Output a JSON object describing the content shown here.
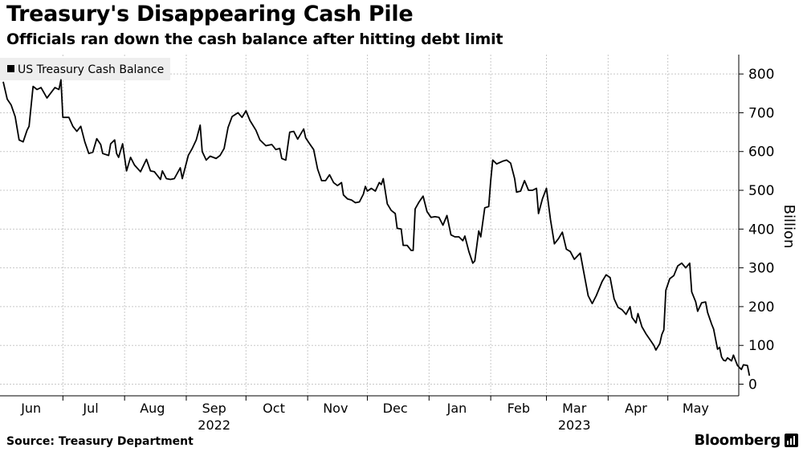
{
  "header": {
    "title": "Treasury's Disappearing Cash Pile",
    "subtitle": "Officials ran down the cash balance after hitting debt limit"
  },
  "footer": {
    "source": "Source: Treasury Department",
    "brand": "Bloomberg",
    "brand_icon": "bloomberg-terminal-icon"
  },
  "colors": {
    "line": "#000000",
    "grid": "#c8c8c8",
    "legend_bg": "#eeeeee",
    "axis": "#000000"
  },
  "chart_data": {
    "type": "line",
    "title": "Treasury's Disappearing Cash Pile",
    "subtitle": "Officials ran down the cash balance after hitting debt limit",
    "ylabel": "Billion",
    "ylim": [
      -30,
      850
    ],
    "yticks": [
      0,
      100,
      200,
      300,
      400,
      500,
      600,
      700,
      800
    ],
    "y_axis_position": "right",
    "grid": true,
    "legend_position": "top-left",
    "x_axis": {
      "start": "2022-06-01",
      "end": "2023-05-31",
      "months": [
        {
          "label": "Jun",
          "date": "2022-06-15"
        },
        {
          "label": "Jul",
          "date": "2022-07-15"
        },
        {
          "label": "Aug",
          "date": "2022-08-15"
        },
        {
          "label": "Sep",
          "date": "2022-09-15"
        },
        {
          "label": "Oct",
          "date": "2022-10-15"
        },
        {
          "label": "Nov",
          "date": "2022-11-15"
        },
        {
          "label": "Dec",
          "date": "2022-12-15"
        },
        {
          "label": "Jan",
          "date": "2023-01-15"
        },
        {
          "label": "Feb",
          "date": "2023-02-15"
        },
        {
          "label": "Mar",
          "date": "2023-03-15"
        },
        {
          "label": "Apr",
          "date": "2023-04-15"
        },
        {
          "label": "May",
          "date": "2023-05-15"
        }
      ],
      "boundaries": [
        "2022-07-01",
        "2022-08-01",
        "2022-09-01",
        "2022-10-01",
        "2022-11-01",
        "2022-12-01",
        "2023-01-01",
        "2023-02-01",
        "2023-03-01",
        "2023-04-01",
        "2023-05-01"
      ],
      "years": [
        {
          "label": "2022",
          "date": "2022-09-15"
        },
        {
          "label": "2023",
          "date": "2023-03-15"
        }
      ]
    },
    "series": [
      {
        "name": "US Treasury Cash Balance",
        "points": [
          [
            "2022-06-01",
            780
          ],
          [
            "2022-06-03",
            735
          ],
          [
            "2022-06-05",
            720
          ],
          [
            "2022-06-07",
            690
          ],
          [
            "2022-06-09",
            630
          ],
          [
            "2022-06-11",
            625
          ],
          [
            "2022-06-13",
            655
          ],
          [
            "2022-06-14",
            665
          ],
          [
            "2022-06-16",
            768
          ],
          [
            "2022-06-18",
            760
          ],
          [
            "2022-06-20",
            765
          ],
          [
            "2022-06-23",
            738
          ],
          [
            "2022-06-27",
            765
          ],
          [
            "2022-06-29",
            760
          ],
          [
            "2022-06-30",
            785
          ],
          [
            "2022-07-01",
            688
          ],
          [
            "2022-07-04",
            688
          ],
          [
            "2022-07-06",
            665
          ],
          [
            "2022-07-08",
            652
          ],
          [
            "2022-07-10",
            665
          ],
          [
            "2022-07-12",
            625
          ],
          [
            "2022-07-14",
            595
          ],
          [
            "2022-07-16",
            598
          ],
          [
            "2022-07-18",
            633
          ],
          [
            "2022-07-20",
            618
          ],
          [
            "2022-07-21",
            595
          ],
          [
            "2022-07-24",
            590
          ],
          [
            "2022-07-25",
            620
          ],
          [
            "2022-07-27",
            630
          ],
          [
            "2022-07-28",
            595
          ],
          [
            "2022-07-29",
            585
          ],
          [
            "2022-07-31",
            620
          ],
          [
            "2022-08-02",
            550
          ],
          [
            "2022-08-04",
            585
          ],
          [
            "2022-08-06",
            565
          ],
          [
            "2022-08-09",
            548
          ],
          [
            "2022-08-12",
            580
          ],
          [
            "2022-08-14",
            550
          ],
          [
            "2022-08-16",
            548
          ],
          [
            "2022-08-19",
            528
          ],
          [
            "2022-08-20",
            550
          ],
          [
            "2022-08-22",
            530
          ],
          [
            "2022-08-24",
            528
          ],
          [
            "2022-08-26",
            530
          ],
          [
            "2022-08-29",
            558
          ],
          [
            "2022-08-30",
            530
          ],
          [
            "2022-09-02",
            590
          ],
          [
            "2022-09-04",
            608
          ],
          [
            "2022-09-06",
            630
          ],
          [
            "2022-09-08",
            668
          ],
          [
            "2022-09-09",
            600
          ],
          [
            "2022-09-11",
            578
          ],
          [
            "2022-09-13",
            588
          ],
          [
            "2022-09-16",
            582
          ],
          [
            "2022-09-18",
            590
          ],
          [
            "2022-09-20",
            608
          ],
          [
            "2022-09-22",
            662
          ],
          [
            "2022-09-24",
            690
          ],
          [
            "2022-09-27",
            700
          ],
          [
            "2022-09-29",
            688
          ],
          [
            "2022-10-01",
            705
          ],
          [
            "2022-10-03",
            680
          ],
          [
            "2022-10-06",
            655
          ],
          [
            "2022-10-08",
            630
          ],
          [
            "2022-10-11",
            615
          ],
          [
            "2022-10-14",
            618
          ],
          [
            "2022-10-16",
            605
          ],
          [
            "2022-10-18",
            608
          ],
          [
            "2022-10-19",
            582
          ],
          [
            "2022-10-21",
            578
          ],
          [
            "2022-10-23",
            650
          ],
          [
            "2022-10-25",
            652
          ],
          [
            "2022-10-27",
            632
          ],
          [
            "2022-10-30",
            658
          ],
          [
            "2022-10-31",
            635
          ],
          [
            "2022-11-02",
            620
          ],
          [
            "2022-11-04",
            605
          ],
          [
            "2022-11-06",
            555
          ],
          [
            "2022-11-08",
            525
          ],
          [
            "2022-11-10",
            525
          ],
          [
            "2022-11-12",
            540
          ],
          [
            "2022-11-14",
            520
          ],
          [
            "2022-11-16",
            512
          ],
          [
            "2022-11-18",
            520
          ],
          [
            "2022-11-19",
            488
          ],
          [
            "2022-11-21",
            478
          ],
          [
            "2022-11-23",
            475
          ],
          [
            "2022-11-25",
            468
          ],
          [
            "2022-11-27",
            470
          ],
          [
            "2022-11-29",
            490
          ],
          [
            "2022-11-30",
            510
          ],
          [
            "2022-12-01",
            498
          ],
          [
            "2022-12-03",
            505
          ],
          [
            "2022-12-05",
            498
          ],
          [
            "2022-12-07",
            520
          ],
          [
            "2022-12-08",
            515
          ],
          [
            "2022-12-09",
            530
          ],
          [
            "2022-12-11",
            465
          ],
          [
            "2022-12-13",
            448
          ],
          [
            "2022-12-15",
            440
          ],
          [
            "2022-12-16",
            402
          ],
          [
            "2022-12-18",
            400
          ],
          [
            "2022-12-19",
            358
          ],
          [
            "2022-12-21",
            358
          ],
          [
            "2022-12-23",
            345
          ],
          [
            "2022-12-24",
            345
          ],
          [
            "2022-12-25",
            452
          ],
          [
            "2022-12-27",
            470
          ],
          [
            "2022-12-29",
            485
          ],
          [
            "2022-12-31",
            445
          ],
          [
            "2023-01-02",
            430
          ],
          [
            "2023-01-04",
            432
          ],
          [
            "2023-01-06",
            430
          ],
          [
            "2023-01-08",
            410
          ],
          [
            "2023-01-10",
            435
          ],
          [
            "2023-01-12",
            385
          ],
          [
            "2023-01-14",
            380
          ],
          [
            "2023-01-16",
            380
          ],
          [
            "2023-01-18",
            370
          ],
          [
            "2023-01-19",
            382
          ],
          [
            "2023-01-21",
            342
          ],
          [
            "2023-01-23",
            312
          ],
          [
            "2023-01-24",
            318
          ],
          [
            "2023-01-26",
            395
          ],
          [
            "2023-01-27",
            380
          ],
          [
            "2023-01-29",
            455
          ],
          [
            "2023-01-31",
            458
          ],
          [
            "2023-02-01",
            525
          ],
          [
            "2023-02-02",
            578
          ],
          [
            "2023-02-04",
            568
          ],
          [
            "2023-02-07",
            575
          ],
          [
            "2023-02-09",
            578
          ],
          [
            "2023-02-11",
            570
          ],
          [
            "2023-02-13",
            530
          ],
          [
            "2023-02-14",
            495
          ],
          [
            "2023-02-16",
            498
          ],
          [
            "2023-02-18",
            525
          ],
          [
            "2023-02-20",
            500
          ],
          [
            "2023-02-22",
            500
          ],
          [
            "2023-02-24",
            505
          ],
          [
            "2023-02-25",
            440
          ],
          [
            "2023-02-27",
            478
          ],
          [
            "2023-03-01",
            505
          ],
          [
            "2023-03-03",
            425
          ],
          [
            "2023-03-05",
            362
          ],
          [
            "2023-03-07",
            375
          ],
          [
            "2023-03-09",
            392
          ],
          [
            "2023-03-11",
            348
          ],
          [
            "2023-03-13",
            342
          ],
          [
            "2023-03-15",
            322
          ],
          [
            "2023-03-18",
            338
          ],
          [
            "2023-03-20",
            282
          ],
          [
            "2023-03-22",
            228
          ],
          [
            "2023-03-24",
            208
          ],
          [
            "2023-03-26",
            228
          ],
          [
            "2023-03-29",
            265
          ],
          [
            "2023-03-31",
            282
          ],
          [
            "2023-04-02",
            275
          ],
          [
            "2023-04-04",
            220
          ],
          [
            "2023-04-06",
            198
          ],
          [
            "2023-04-08",
            192
          ],
          [
            "2023-04-10",
            180
          ],
          [
            "2023-04-12",
            200
          ],
          [
            "2023-04-13",
            172
          ],
          [
            "2023-04-15",
            158
          ],
          [
            "2023-04-16",
            182
          ],
          [
            "2023-04-18",
            148
          ],
          [
            "2023-04-20",
            130
          ],
          [
            "2023-04-22",
            115
          ],
          [
            "2023-04-24",
            100
          ],
          [
            "2023-04-25",
            88
          ],
          [
            "2023-04-27",
            105
          ],
          [
            "2023-04-28",
            128
          ],
          [
            "2023-04-29",
            140
          ],
          [
            "2023-04-30",
            242
          ],
          [
            "2023-05-02",
            272
          ],
          [
            "2023-05-04",
            280
          ],
          [
            "2023-05-06",
            305
          ],
          [
            "2023-05-08",
            312
          ],
          [
            "2023-05-10",
            300
          ],
          [
            "2023-05-12",
            312
          ],
          [
            "2023-05-13",
            238
          ],
          [
            "2023-05-15",
            212
          ],
          [
            "2023-05-16",
            188
          ],
          [
            "2023-05-18",
            210
          ],
          [
            "2023-05-20",
            212
          ],
          [
            "2023-05-21",
            185
          ],
          [
            "2023-05-23",
            155
          ],
          [
            "2023-05-24",
            142
          ],
          [
            "2023-05-26",
            90
          ],
          [
            "2023-05-27",
            95
          ],
          [
            "2023-05-28",
            70
          ],
          [
            "2023-05-29",
            62
          ],
          [
            "2023-05-30",
            60
          ],
          [
            "2023-05-31",
            68
          ],
          [
            "2023-06-02",
            60
          ],
          [
            "2023-06-03",
            75
          ],
          [
            "2023-06-05",
            48
          ],
          [
            "2023-06-07",
            38
          ],
          [
            "2023-06-08",
            50
          ],
          [
            "2023-06-10",
            48
          ],
          [
            "2023-06-11",
            22
          ]
        ]
      }
    ]
  }
}
